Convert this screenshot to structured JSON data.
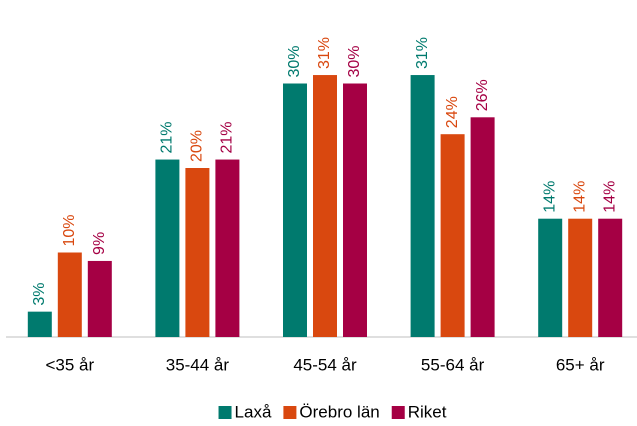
{
  "chart_data": {
    "type": "bar",
    "categories": [
      "<35 år",
      "35-44 år",
      "45-54 år",
      "55-64 år",
      "65+ år"
    ],
    "series": [
      {
        "name": "Laxå",
        "color": "#007a6e",
        "values": [
          3,
          21,
          30,
          31,
          14
        ],
        "value_labels": [
          "3%",
          "21%",
          "30%",
          "31%",
          "14%"
        ]
      },
      {
        "name": "Örebro län",
        "color": "#d9480f",
        "values": [
          10,
          20,
          31,
          24,
          14
        ],
        "value_labels": [
          "10%",
          "20%",
          "31%",
          "24%",
          "14%"
        ]
      },
      {
        "name": "Riket",
        "color": "#a50044",
        "values": [
          9,
          21,
          30,
          26,
          14
        ],
        "value_labels": [
          "9%",
          "21%",
          "30%",
          "26%",
          "14%"
        ]
      }
    ]
  }
}
